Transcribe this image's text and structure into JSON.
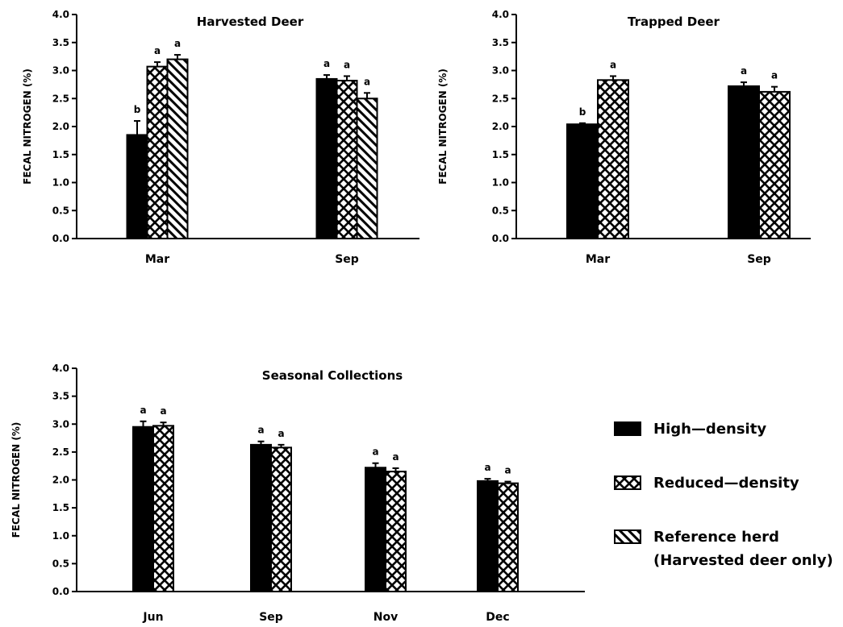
{
  "legend": {
    "items": [
      {
        "key": "high",
        "label": "High—density",
        "pattern": "solid"
      },
      {
        "key": "reduced",
        "label": "Reduced—density",
        "pattern": "crosshatch"
      },
      {
        "key": "reference",
        "label": "Reference herd",
        "label2": "(Harvested deer only)",
        "pattern": "diagonal"
      }
    ]
  },
  "chart_data": [
    {
      "type": "bar",
      "title": "Harvested Deer",
      "ylabel": "FECAL NITROGEN (%)",
      "ylim": [
        0,
        4.0
      ],
      "yticks": [
        "0.0",
        "0.5",
        "1.0",
        "1.5",
        "2.0",
        "2.5",
        "3.0",
        "3.5",
        "4.0"
      ],
      "categories": [
        "Mar",
        "Sep"
      ],
      "series": [
        {
          "name": "High—density",
          "pattern": "solid",
          "values": [
            1.85,
            2.85
          ],
          "errors": [
            0.25,
            0.07
          ],
          "letters": [
            "b",
            "a"
          ]
        },
        {
          "name": "Reduced—density",
          "pattern": "crosshatch",
          "values": [
            3.07,
            2.82
          ],
          "errors": [
            0.08,
            0.08
          ],
          "letters": [
            "a",
            "a"
          ]
        },
        {
          "name": "Reference herd",
          "pattern": "diagonal",
          "values": [
            3.2,
            2.5
          ],
          "errors": [
            0.08,
            0.1
          ],
          "letters": [
            "a",
            "a"
          ]
        }
      ]
    },
    {
      "type": "bar",
      "title": "Trapped Deer",
      "ylabel": "FECAL NITROGEN (%)",
      "ylim": [
        0,
        4.0
      ],
      "yticks": [
        "0.0",
        "0.5",
        "1.0",
        "1.5",
        "2.0",
        "2.5",
        "3.0",
        "3.5",
        "4.0"
      ],
      "categories": [
        "Mar",
        "Sep"
      ],
      "series": [
        {
          "name": "High—density",
          "pattern": "solid",
          "values": [
            2.04,
            2.72
          ],
          "errors": [
            0.02,
            0.07
          ],
          "letters": [
            "b",
            "a"
          ]
        },
        {
          "name": "Reduced—density",
          "pattern": "crosshatch",
          "values": [
            2.83,
            2.62
          ],
          "errors": [
            0.07,
            0.09
          ],
          "letters": [
            "a",
            "a"
          ]
        }
      ]
    },
    {
      "type": "bar",
      "title": "Seasonal Collections",
      "ylabel": "FECAL NITROGEN (%)",
      "ylim": [
        0,
        4.0
      ],
      "yticks": [
        "0.0",
        "0.5",
        "1.0",
        "1.5",
        "2.0",
        "2.5",
        "3.0",
        "3.5",
        "4.0"
      ],
      "categories": [
        "Jun",
        "Sep",
        "Nov",
        "Dec"
      ],
      "series": [
        {
          "name": "High—density",
          "pattern": "solid",
          "values": [
            2.95,
            2.63,
            2.22,
            1.98
          ],
          "errors": [
            0.1,
            0.06,
            0.08,
            0.04
          ],
          "letters": [
            "a",
            "a",
            "a",
            "a"
          ]
        },
        {
          "name": "Reduced—density",
          "pattern": "crosshatch",
          "values": [
            2.97,
            2.58,
            2.15,
            1.94
          ],
          "errors": [
            0.06,
            0.05,
            0.06,
            0.03
          ],
          "letters": [
            "a",
            "a",
            "a",
            "a"
          ]
        }
      ]
    }
  ]
}
